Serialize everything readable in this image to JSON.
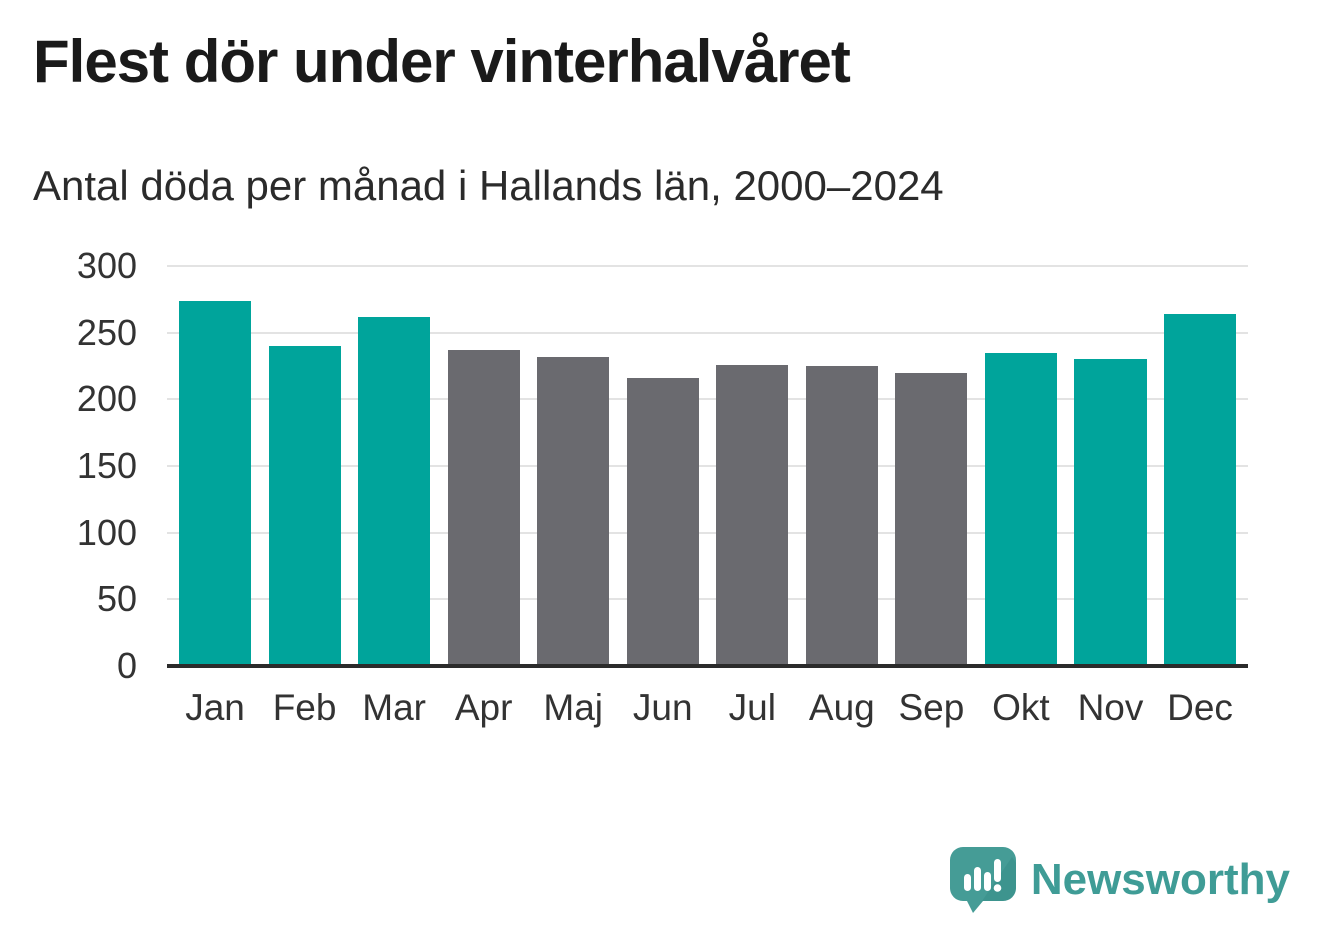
{
  "title": "Flest dör under vinterhalvåret",
  "subtitle": "Antal döda per månad i Hallands län, 2000–2024",
  "colors": {
    "highlight": "#00a49b",
    "muted": "#6a6a6f",
    "grid": "#e3e3e3",
    "axis": "#2b2b2b",
    "brand": "#3f9c96"
  },
  "chart_data": {
    "type": "bar",
    "title": "Flest dör under vinterhalvåret",
    "subtitle": "Antal döda per månad i Hallands län, 2000–2024",
    "categories": [
      "Jan",
      "Feb",
      "Mar",
      "Apr",
      "Maj",
      "Jun",
      "Jul",
      "Aug",
      "Sep",
      "Okt",
      "Nov",
      "Dec"
    ],
    "values": [
      274,
      240,
      262,
      237,
      232,
      216,
      226,
      225,
      220,
      235,
      230,
      264
    ],
    "highlighted_categories": [
      "Jan",
      "Feb",
      "Mar",
      "Okt",
      "Nov",
      "Dec"
    ],
    "xlabel": "",
    "ylabel": "",
    "ylim": [
      0,
      300
    ],
    "yticks": [
      0,
      50,
      100,
      150,
      200,
      250,
      300
    ],
    "grid": "horizontal",
    "legend": "none"
  },
  "footer": {
    "brand": "Newsworthy"
  }
}
